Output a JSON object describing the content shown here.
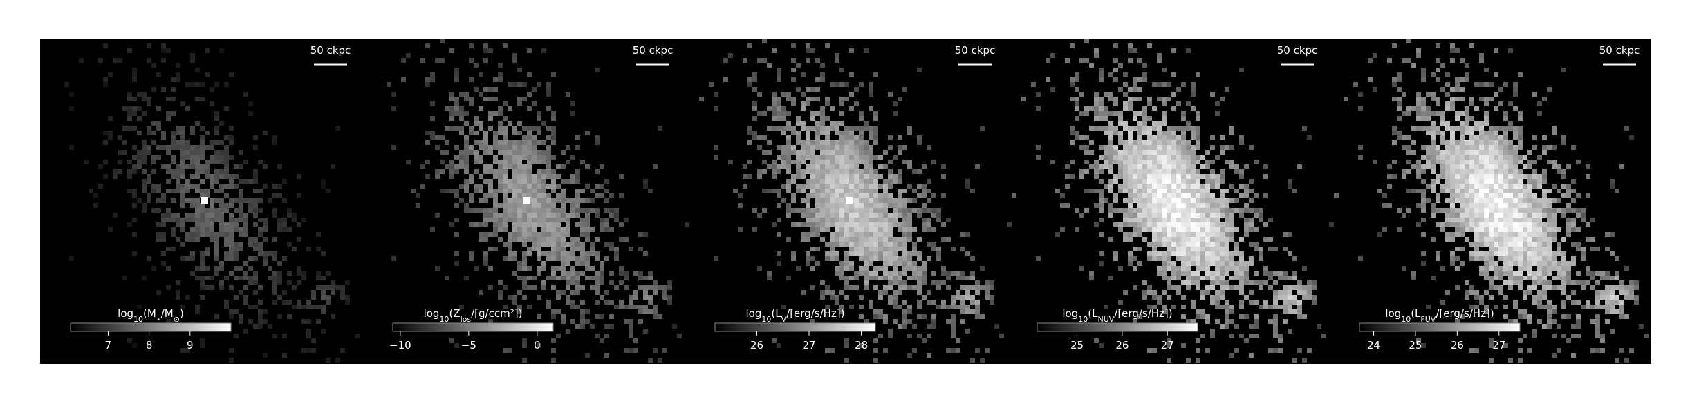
{
  "panels": [
    {
      "scale_label": "50 ckpc",
      "colorbar": {
        "label": [
          "log",
          "10",
          "(M",
          "⋆",
          "/M",
          "⊙",
          ")"
        ],
        "lim": [
          6.08,
          10.0
        ],
        "ticks": [
          7,
          8,
          9
        ]
      }
    },
    {
      "scale_label": "50 ckpc",
      "colorbar": {
        "label": [
          "log",
          "10",
          "(Z",
          "los",
          "/[g/ccm²])"
        ],
        "lim": [
          -10.55,
          1.17
        ],
        "ticks": [
          {
            "value": -10,
            "label": "−10"
          },
          {
            "value": -5,
            "label": "−5"
          },
          0
        ]
      }
    },
    {
      "scale_label": "50 ckpc",
      "colorbar": {
        "label": [
          "log",
          "10",
          "(L",
          "V",
          "/[erg/s/Hz])"
        ],
        "lim": [
          25.2,
          28.27
        ],
        "ticks": [
          26,
          27,
          28
        ]
      }
    },
    {
      "scale_label": "50 ckpc",
      "colorbar": {
        "label": [
          "log",
          "10",
          "(L",
          "NUV",
          "/[erg/s/Hz])"
        ],
        "lim": [
          24.12,
          27.67
        ],
        "ticks": [
          25,
          26,
          27
        ]
      }
    },
    {
      "scale_label": "50 ckpc",
      "colorbar": {
        "label": [
          "log",
          "10",
          "(L",
          "FUV",
          "/[erg/s/Hz])"
        ],
        "lim": [
          23.66,
          27.5
        ],
        "ticks": [
          24,
          25,
          26,
          27
        ]
      }
    }
  ]
}
